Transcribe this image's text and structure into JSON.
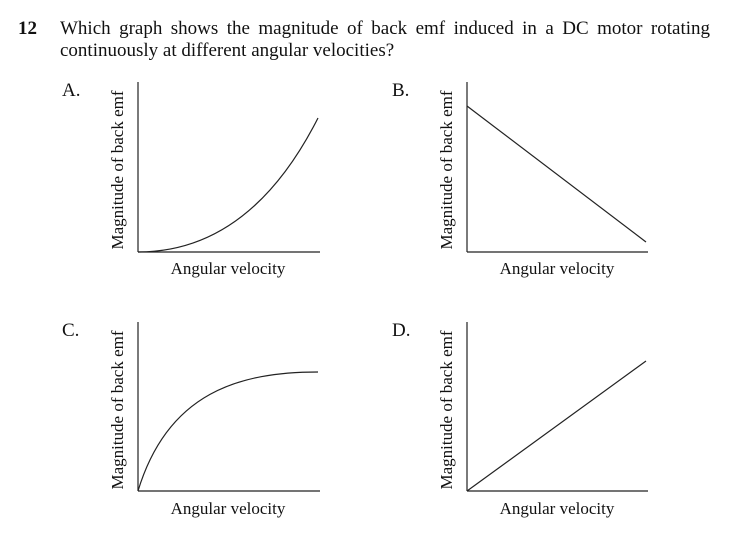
{
  "question": {
    "number": "12",
    "line1": "Which graph shows the magnitude of back emf induced in a DC motor rotating",
    "line2": "continuously at different angular velocities?"
  },
  "options": [
    {
      "label": "A.",
      "xlabel": "Angular velocity",
      "ylabel": "Magnitude of back emf",
      "curve": "rising-convex"
    },
    {
      "label": "B.",
      "xlabel": "Angular velocity",
      "ylabel": "Magnitude of back emf",
      "curve": "falling-linear"
    },
    {
      "label": "C.",
      "xlabel": "Angular velocity",
      "ylabel": "Magnitude of back emf",
      "curve": "rising-concave-saturating"
    },
    {
      "label": "D.",
      "xlabel": "Angular velocity",
      "ylabel": "Magnitude of back emf",
      "curve": "rising-linear-from-origin"
    }
  ]
}
